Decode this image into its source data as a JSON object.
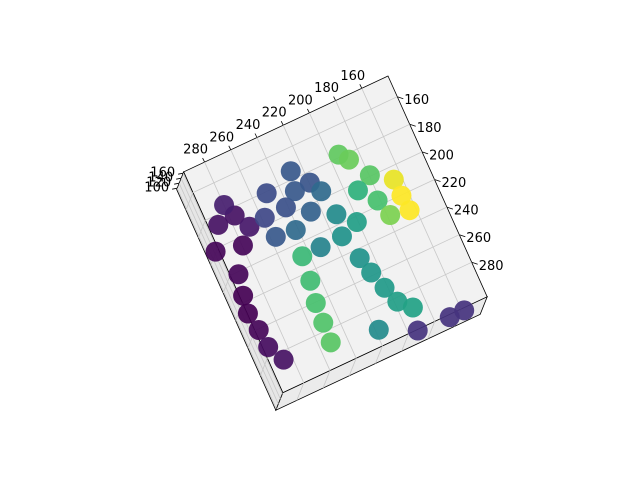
{
  "chart_data": {
    "type": "scatter3d",
    "colormap": "viridis",
    "x": [
      281,
      268,
      271,
      290,
      262,
      282,
      272,
      285,
      287,
      285,
      284,
      278,
      243,
      222,
      213,
      235,
      251,
      221,
      236,
      250,
      209,
      225,
      207,
      210,
      226,
      197,
      191,
      186,
      177,
      179,
      176,
      188,
      205,
      202,
      198,
      194,
      186,
      242,
      244,
      247,
      248,
      249,
      213,
      186,
      162,
      151,
      165,
      165,
      164
    ],
    "y": [
      179,
      178,
      198,
      194,
      189,
      214,
      169,
      228,
      240,
      253,
      266,
      278,
      175,
      169,
      181,
      189,
      189,
      199,
      206,
      204,
      190,
      182,
      209,
      224,
      224,
      220,
      176,
      182,
      197,
      214,
      227,
      202,
      242,
      254,
      267,
      279,
      287,
      226,
      243,
      258,
      272,
      286,
      290,
      299,
      300,
      300,
      208,
      220,
      231
    ],
    "z": [
      104,
      104,
      102,
      102,
      105,
      102,
      106,
      101,
      101,
      102,
      103,
      104,
      115,
      118,
      117,
      116,
      114,
      120,
      122,
      118,
      122,
      118,
      130,
      132,
      128,
      135,
      147,
      148,
      146,
      144,
      150,
      140,
      132,
      133,
      134,
      135,
      136,
      142,
      143,
      144,
      145,
      146,
      130,
      110,
      110,
      110,
      160,
      162,
      162
    ],
    "xlim": [
      140,
      296
    ],
    "ylim": [
      145,
      305
    ],
    "zlim": [
      95,
      165
    ],
    "xticks": [
      160,
      180,
      200,
      220,
      240,
      260,
      280
    ],
    "yticks": [
      160,
      180,
      200,
      220,
      240,
      260,
      280
    ],
    "zticks": [
      100,
      120,
      140,
      160
    ],
    "grid": true
  }
}
